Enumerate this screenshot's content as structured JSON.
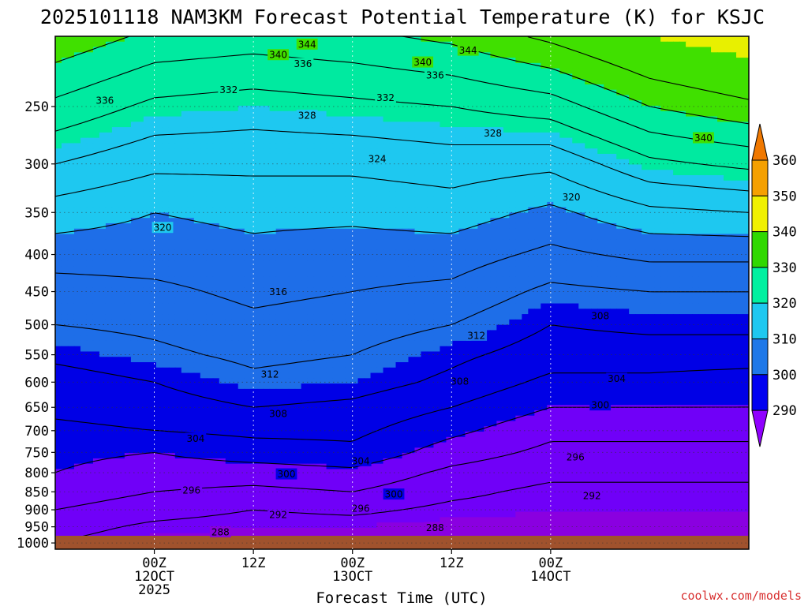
{
  "chart_data": {
    "type": "contour",
    "title": "2025101118 NAM3KM Forecast Potential Temperature (K) for KSJC",
    "xlabel": "Forecast Time (UTC)",
    "ylabel": "",
    "credit": "coolwx.com/models",
    "x_range_hours": [
      -6,
      78
    ],
    "y_range_hpa": [
      200,
      1020
    ],
    "y_scale": "log",
    "x_ticks": [
      {
        "hour": 6,
        "lines": [
          "00Z",
          "12OCT",
          "2025"
        ]
      },
      {
        "hour": 18,
        "lines": [
          "12Z"
        ]
      },
      {
        "hour": 30,
        "lines": [
          "00Z",
          "13OCT"
        ]
      },
      {
        "hour": 42,
        "lines": [
          "12Z"
        ]
      },
      {
        "hour": 54,
        "lines": [
          "00Z",
          "14OCT"
        ]
      }
    ],
    "y_ticks": [
      250,
      300,
      350,
      400,
      450,
      500,
      550,
      600,
      650,
      700,
      750,
      800,
      850,
      900,
      950,
      1000
    ],
    "grid": true,
    "colorbar": {
      "ticks": [
        290,
        300,
        310,
        320,
        330,
        340,
        350,
        360
      ],
      "bands": [
        {
          "min": 280,
          "max": 290,
          "color": "#8a00e0"
        },
        {
          "min": 290,
          "max": 300,
          "color": "#7000f8"
        },
        {
          "min": 300,
          "max": 310,
          "color": "#0000e6"
        },
        {
          "min": 310,
          "max": 320,
          "color": "#1e6ee8"
        },
        {
          "min": 320,
          "max": 330,
          "color": "#1ec8f0"
        },
        {
          "min": 330,
          "max": 340,
          "color": "#00eaa0"
        },
        {
          "min": 340,
          "max": 350,
          "color": "#40e000"
        },
        {
          "min": 350,
          "max": 360,
          "color": "#e8f000"
        },
        {
          "min": 360,
          "max": 370,
          "color": "#f0a000"
        },
        {
          "min": 370,
          "max": 380,
          "color": "#f07800"
        }
      ],
      "colors": [
        "#7a00e8",
        "#0000f0",
        "#1e78e8",
        "#1ec8f0",
        "#00f0a0",
        "#30d800",
        "#f0f000",
        "#f5a000"
      ],
      "under_color": "#9000ff",
      "over_color": "#f07800"
    },
    "levels": [
      288,
      292,
      296,
      300,
      304,
      308,
      312,
      316,
      320,
      324,
      328,
      332,
      336,
      340,
      344
    ],
    "profile_hours": [
      -6,
      6,
      18,
      30,
      42,
      54,
      66,
      78
    ],
    "profiles": [
      {
        "hour": -6,
        "levels": [
          {
            "p": 1000,
            "t": 292
          },
          {
            "p": 950,
            "t": 294
          },
          {
            "p": 900,
            "t": 296
          },
          {
            "p": 850,
            "t": 298
          },
          {
            "p": 800,
            "t": 300
          },
          {
            "p": 750,
            "t": 301
          },
          {
            "p": 700,
            "t": 303
          },
          {
            "p": 650,
            "t": 305
          },
          {
            "p": 600,
            "t": 306
          },
          {
            "p": 550,
            "t": 309
          },
          {
            "p": 500,
            "t": 312
          },
          {
            "p": 450,
            "t": 314
          },
          {
            "p": 400,
            "t": 318
          },
          {
            "p": 350,
            "t": 322
          },
          {
            "p": 300,
            "t": 328
          },
          {
            "p": 250,
            "t": 335
          },
          {
            "p": 200,
            "t": 343
          }
        ]
      },
      {
        "hour": 6,
        "levels": [
          {
            "p": 1000,
            "t": 289
          },
          {
            "p": 950,
            "t": 291
          },
          {
            "p": 900,
            "t": 294
          },
          {
            "p": 850,
            "t": 296
          },
          {
            "p": 800,
            "t": 298
          },
          {
            "p": 750,
            "t": 300
          },
          {
            "p": 700,
            "t": 304
          },
          {
            "p": 650,
            "t": 306
          },
          {
            "p": 600,
            "t": 308
          },
          {
            "p": 550,
            "t": 311
          },
          {
            "p": 500,
            "t": 313
          },
          {
            "p": 450,
            "t": 315
          },
          {
            "p": 400,
            "t": 318
          },
          {
            "p": 350,
            "t": 320
          },
          {
            "p": 300,
            "t": 325
          },
          {
            "p": 250,
            "t": 331
          },
          {
            "p": 200,
            "t": 339
          }
        ]
      },
      {
        "hour": 18,
        "levels": [
          {
            "p": 1000,
            "t": 289
          },
          {
            "p": 950,
            "t": 290
          },
          {
            "p": 900,
            "t": 292
          },
          {
            "p": 850,
            "t": 295
          },
          {
            "p": 800,
            "t": 298
          },
          {
            "p": 750,
            "t": 302
          },
          {
            "p": 700,
            "t": 305
          },
          {
            "p": 650,
            "t": 308
          },
          {
            "p": 600,
            "t": 311
          },
          {
            "p": 550,
            "t": 313
          },
          {
            "p": 500,
            "t": 315
          },
          {
            "p": 450,
            "t": 317
          },
          {
            "p": 400,
            "t": 319
          },
          {
            "p": 350,
            "t": 321
          },
          {
            "p": 300,
            "t": 325
          },
          {
            "p": 250,
            "t": 330
          },
          {
            "p": 200,
            "t": 338
          }
        ]
      },
      {
        "hour": 30,
        "levels": [
          {
            "p": 1000,
            "t": 289
          },
          {
            "p": 950,
            "t": 290
          },
          {
            "p": 900,
            "t": 293
          },
          {
            "p": 850,
            "t": 296
          },
          {
            "p": 800,
            "t": 299
          },
          {
            "p": 750,
            "t": 303
          },
          {
            "p": 700,
            "t": 305
          },
          {
            "p": 650,
            "t": 307
          },
          {
            "p": 600,
            "t": 310
          },
          {
            "p": 550,
            "t": 312
          },
          {
            "p": 500,
            "t": 314
          },
          {
            "p": 450,
            "t": 316
          },
          {
            "p": 400,
            "t": 318
          },
          {
            "p": 350,
            "t": 321
          },
          {
            "p": 300,
            "t": 325
          },
          {
            "p": 250,
            "t": 331
          },
          {
            "p": 200,
            "t": 339
          }
        ]
      },
      {
        "hour": 42,
        "levels": [
          {
            "p": 1000,
            "t": 288
          },
          {
            "p": 950,
            "t": 289
          },
          {
            "p": 900,
            "t": 291
          },
          {
            "p": 850,
            "t": 293
          },
          {
            "p": 800,
            "t": 295
          },
          {
            "p": 750,
            "t": 298
          },
          {
            "p": 700,
            "t": 301
          },
          {
            "p": 650,
            "t": 304
          },
          {
            "p": 600,
            "t": 307
          },
          {
            "p": 550,
            "t": 309
          },
          {
            "p": 500,
            "t": 312
          },
          {
            "p": 450,
            "t": 315
          },
          {
            "p": 400,
            "t": 318
          },
          {
            "p": 350,
            "t": 322
          },
          {
            "p": 300,
            "t": 326
          },
          {
            "p": 250,
            "t": 332
          },
          {
            "p": 200,
            "t": 341
          }
        ]
      },
      {
        "hour": 54,
        "levels": [
          {
            "p": 1000,
            "t": 288
          },
          {
            "p": 950,
            "t": 289
          },
          {
            "p": 900,
            "t": 290
          },
          {
            "p": 850,
            "t": 291
          },
          {
            "p": 800,
            "t": 293
          },
          {
            "p": 750,
            "t": 295
          },
          {
            "p": 700,
            "t": 297
          },
          {
            "p": 650,
            "t": 300
          },
          {
            "p": 600,
            "t": 303
          },
          {
            "p": 550,
            "t": 306
          },
          {
            "p": 500,
            "t": 308
          },
          {
            "p": 450,
            "t": 311
          },
          {
            "p": 400,
            "t": 315
          },
          {
            "p": 350,
            "t": 319
          },
          {
            "p": 300,
            "t": 325
          },
          {
            "p": 250,
            "t": 334
          },
          {
            "p": 200,
            "t": 345
          }
        ]
      },
      {
        "hour": 66,
        "levels": [
          {
            "p": 1000,
            "t": 288
          },
          {
            "p": 950,
            "t": 289
          },
          {
            "p": 900,
            "t": 290
          },
          {
            "p": 850,
            "t": 291
          },
          {
            "p": 800,
            "t": 293
          },
          {
            "p": 750,
            "t": 295
          },
          {
            "p": 700,
            "t": 297
          },
          {
            "p": 650,
            "t": 300
          },
          {
            "p": 600,
            "t": 303
          },
          {
            "p": 550,
            "t": 306
          },
          {
            "p": 500,
            "t": 309
          },
          {
            "p": 450,
            "t": 312
          },
          {
            "p": 400,
            "t": 317
          },
          {
            "p": 350,
            "t": 323
          },
          {
            "p": 300,
            "t": 331
          },
          {
            "p": 250,
            "t": 340
          },
          {
            "p": 200,
            "t": 350
          }
        ]
      },
      {
        "hour": 78,
        "levels": [
          {
            "p": 1000,
            "t": 288
          },
          {
            "p": 950,
            "t": 289
          },
          {
            "p": 900,
            "t": 290
          },
          {
            "p": 850,
            "t": 291
          },
          {
            "p": 800,
            "t": 293
          },
          {
            "p": 750,
            "t": 295
          },
          {
            "p": 700,
            "t": 297
          },
          {
            "p": 650,
            "t": 300
          },
          {
            "p": 600,
            "t": 302
          },
          {
            "p": 550,
            "t": 306
          },
          {
            "p": 500,
            "t": 309
          },
          {
            "p": 450,
            "t": 312
          },
          {
            "p": 400,
            "t": 317
          },
          {
            "p": 350,
            "t": 324
          },
          {
            "p": 300,
            "t": 333
          },
          {
            "p": 250,
            "t": 343
          },
          {
            "p": 200,
            "t": 353
          }
        ]
      }
    ],
    "contour_labels": [
      {
        "value": "344",
        "hour": 24.5,
        "p": 205
      },
      {
        "value": "344",
        "hour": 44,
        "p": 209
      },
      {
        "value": "340",
        "hour": 21,
        "p": 212
      },
      {
        "value": "340",
        "hour": 38.5,
        "p": 217
      },
      {
        "value": "340",
        "hour": 72.5,
        "p": 276
      },
      {
        "value": "336",
        "hour": 24,
        "p": 218
      },
      {
        "value": "336",
        "hour": 40,
        "p": 226
      },
      {
        "value": "336",
        "hour": 0,
        "p": 245
      },
      {
        "value": "332",
        "hour": 15,
        "p": 237
      },
      {
        "value": "332",
        "hour": 34,
        "p": 243
      },
      {
        "value": "328",
        "hour": 24.5,
        "p": 257
      },
      {
        "value": "328",
        "hour": 47,
        "p": 272
      },
      {
        "value": "324",
        "hour": 33,
        "p": 295
      },
      {
        "value": "320",
        "hour": 7,
        "p": 367
      },
      {
        "value": "320",
        "hour": 56.5,
        "p": 333
      },
      {
        "value": "316",
        "hour": 21,
        "p": 450
      },
      {
        "value": "312",
        "hour": 20,
        "p": 585
      },
      {
        "value": "312",
        "hour": 45,
        "p": 517
      },
      {
        "value": "308",
        "hour": 21,
        "p": 663
      },
      {
        "value": "308",
        "hour": 43,
        "p": 598
      },
      {
        "value": "308",
        "hour": 60,
        "p": 486
      },
      {
        "value": "304",
        "hour": 11,
        "p": 717
      },
      {
        "value": "304",
        "hour": 31,
        "p": 770
      },
      {
        "value": "304",
        "hour": 62,
        "p": 593
      },
      {
        "value": "300",
        "hour": 22,
        "p": 803
      },
      {
        "value": "300",
        "hour": 35,
        "p": 856
      },
      {
        "value": "300",
        "hour": 60,
        "p": 645
      },
      {
        "value": "296",
        "hour": 10.5,
        "p": 845
      },
      {
        "value": "296",
        "hour": 31,
        "p": 895
      },
      {
        "value": "296",
        "hour": 57,
        "p": 761
      },
      {
        "value": "292",
        "hour": 21,
        "p": 913
      },
      {
        "value": "292",
        "hour": 59,
        "p": 860
      },
      {
        "value": "288",
        "hour": 14,
        "p": 965
      },
      {
        "value": "288",
        "hour": 40,
        "p": 952
      }
    ]
  }
}
